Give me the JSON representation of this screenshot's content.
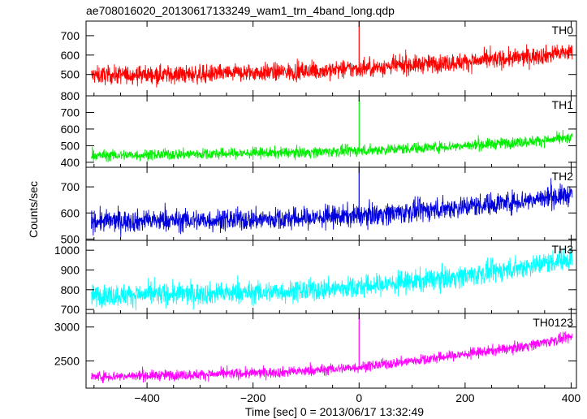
{
  "chart_data": {
    "type": "line",
    "title": "ae708016020_20130617133249_wam1_trn_4band_long.qdp",
    "xlabel": "Time [sec] 0 = 2013/06/17 13:32:49",
    "ylabel": "Counts/sec",
    "xlim": [
      -515,
      410
    ],
    "x_ticks": [
      -400,
      -200,
      0,
      200,
      400
    ],
    "x_tick_labels": [
      "−400",
      "−200",
      "0",
      "200",
      "400"
    ],
    "grid": false,
    "panels": [
      {
        "name": "TH0",
        "color": "#ff0000",
        "ylim": [
          390,
          775
        ],
        "y_ticks": [
          500,
          600,
          700
        ],
        "y_tick_labels": [
          "500",
          "600",
          "700"
        ],
        "x": [
          -500,
          -400,
          -300,
          -200,
          -100,
          0,
          100,
          200,
          300,
          400
        ],
        "values": [
          495,
          500,
          500,
          510,
          515,
          530,
          550,
          565,
          585,
          615
        ],
        "noise": 42,
        "spike": {
          "x": 0,
          "value": 775
        }
      },
      {
        "name": "TH1",
        "color": "#00ee00",
        "ylim": [
          370,
          800
        ],
        "y_ticks": [
          400,
          500,
          600,
          700,
          800
        ],
        "y_tick_labels": [
          "400",
          "500",
          "600",
          "700",
          "800"
        ],
        "x": [
          -500,
          -400,
          -300,
          -200,
          -100,
          0,
          100,
          200,
          300,
          400
        ],
        "values": [
          440,
          445,
          450,
          455,
          460,
          470,
          485,
          500,
          520,
          545
        ],
        "noise": 30,
        "spike": {
          "x": 0,
          "value": 800
        }
      },
      {
        "name": "TH2",
        "color": "#0000dd",
        "ylim": [
          495,
          775
        ],
        "y_ticks": [
          500,
          600,
          700
        ],
        "y_tick_labels": [
          "500",
          "600",
          "700"
        ],
        "x": [
          -500,
          -400,
          -300,
          -200,
          -100,
          0,
          100,
          200,
          300,
          400
        ],
        "values": [
          568,
          570,
          572,
          575,
          580,
          590,
          605,
          625,
          645,
          670
        ],
        "noise": 38,
        "spike": {
          "x": 0,
          "value": 775
        }
      },
      {
        "name": "TH3",
        "color": "#00ffff",
        "ylim": [
          680,
          1050
        ],
        "y_ticks": [
          700,
          800,
          900,
          1000
        ],
        "y_tick_labels": [
          "700",
          "800",
          "900",
          "1000"
        ],
        "x": [
          -500,
          -400,
          -300,
          -200,
          -100,
          0,
          100,
          200,
          300,
          400
        ],
        "values": [
          770,
          775,
          780,
          785,
          795,
          815,
          840,
          870,
          910,
          960
        ],
        "noise": 50,
        "spike": null
      },
      {
        "name": "TH0123",
        "color": "#ff00ff",
        "ylim": [
          2100,
          3200
        ],
        "y_ticks": [
          2500,
          3000
        ],
        "y_tick_labels": [
          "2500",
          "3000"
        ],
        "x": [
          -500,
          -400,
          -300,
          -200,
          -100,
          0,
          100,
          200,
          300,
          400
        ],
        "values": [
          2270,
          2285,
          2300,
          2320,
          2350,
          2410,
          2500,
          2600,
          2700,
          2850
        ],
        "noise": 70,
        "spike": {
          "x": 0,
          "value": 3200
        }
      }
    ]
  }
}
